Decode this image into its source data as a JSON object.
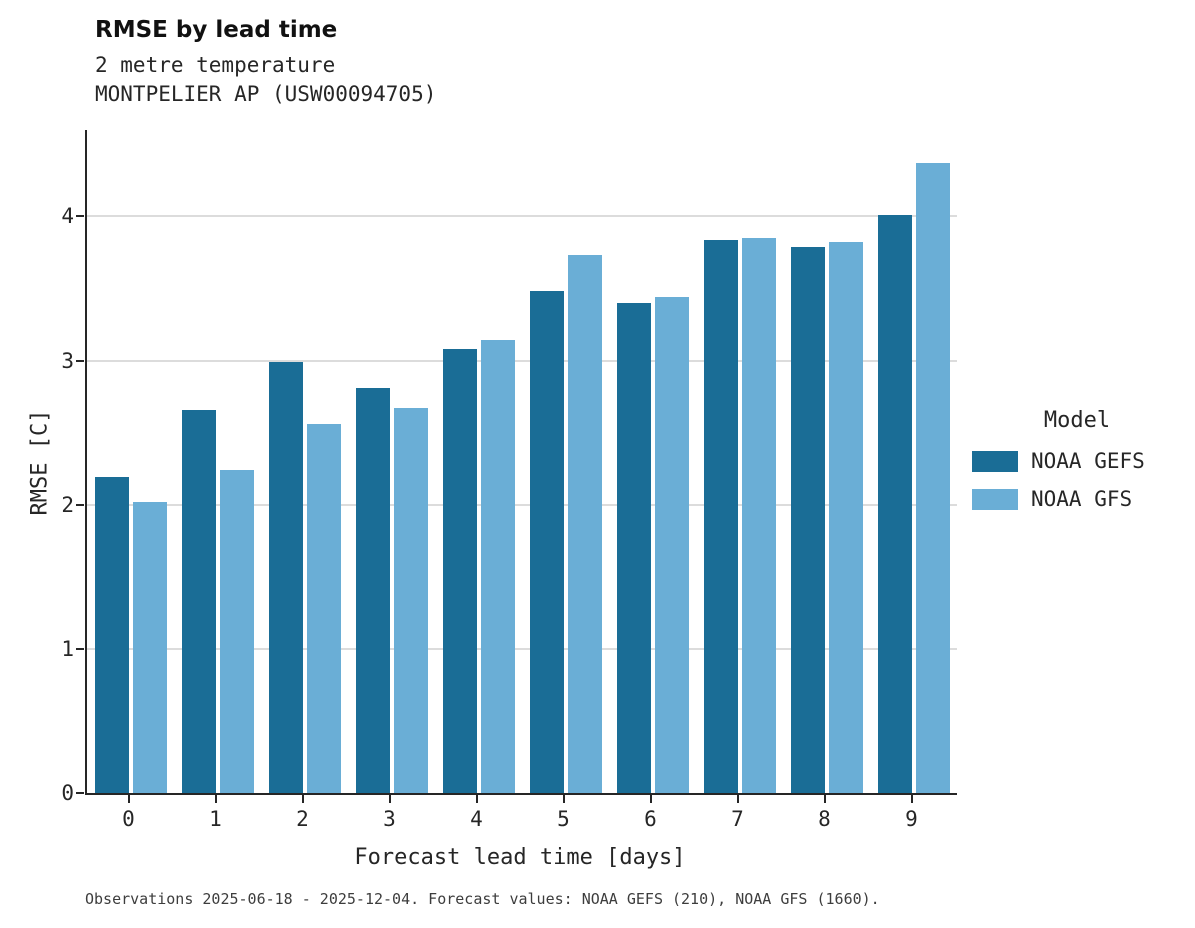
{
  "header": {
    "title": "RMSE by lead time",
    "subtitle1": "2 metre temperature",
    "subtitle2": "MONTPELIER AP (USW00094705)"
  },
  "chart_data": {
    "type": "bar",
    "title": "RMSE by lead time",
    "subtitle": [
      "2 metre temperature",
      "MONTPELIER AP (USW00094705)"
    ],
    "xlabel": "Forecast lead time [days]",
    "ylabel": "RMSE [C]",
    "categories": [
      "0",
      "1",
      "2",
      "3",
      "4",
      "5",
      "6",
      "7",
      "8",
      "9"
    ],
    "series": [
      {
        "name": "NOAA GEFS",
        "color": "#1a6d96",
        "values": [
          2.19,
          2.66,
          2.99,
          2.81,
          3.08,
          3.48,
          3.4,
          3.84,
          3.79,
          4.01
        ]
      },
      {
        "name": "NOAA GFS",
        "color": "#6aaed6",
        "values": [
          2.02,
          2.24,
          2.56,
          2.67,
          3.14,
          3.73,
          3.44,
          3.85,
          3.82,
          4.37
        ]
      }
    ],
    "ylim": [
      0,
      4.6
    ],
    "yticks": [
      0,
      1,
      2,
      3,
      4
    ],
    "grid": "horizontal",
    "legend_title": "Model",
    "legend_position": "right"
  },
  "footer": {
    "note": "Observations 2025-06-18 - 2025-12-04. Forecast values: NOAA GEFS (210), NOAA GFS (1660)."
  }
}
